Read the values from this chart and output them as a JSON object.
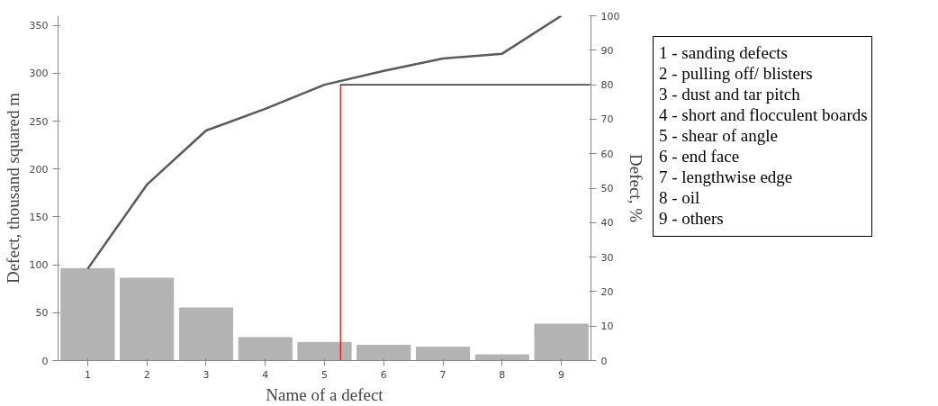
{
  "chart_data": {
    "type": "bar",
    "xlabel": "Name of a defect",
    "ylabel": "Defect, thousand squared m",
    "y2label": "Defect, %",
    "x": [
      1,
      2,
      3,
      4,
      5,
      6,
      7,
      8,
      9
    ],
    "xlim": [
      0.5,
      9.5
    ],
    "xticks": [
      1,
      2,
      3,
      4,
      5,
      6,
      7,
      8,
      9
    ],
    "ylim": [
      0,
      360
    ],
    "yticks": [
      0,
      50,
      100,
      150,
      200,
      250,
      300,
      350
    ],
    "y2lim": [
      0,
      100
    ],
    "y2ticks": [
      0,
      10,
      20,
      30,
      40,
      50,
      60,
      70,
      80,
      90,
      100
    ],
    "series": [
      {
        "color": "#b3b3b3",
        "values": [
          96,
          86,
          55,
          24,
          19,
          16,
          14,
          6,
          38
        ]
      },
      {
        "type": "line",
        "color": "#5a5a5a",
        "axis": "y2",
        "values": [
          26.6,
          51,
          66.7,
          73,
          80,
          84,
          87.6,
          89,
          100
        ]
      }
    ],
    "ref_lines": [
      {
        "axis": "x",
        "value": 5.27,
        "color": "#ff0000"
      },
      {
        "axis": "y2",
        "value": 80,
        "color": "#000000"
      }
    ],
    "annotations": [
      "1 -  sanding defects",
      "2 -  pulling off/ blisters",
      "3 -  dust and tar pitch",
      "4 - short and flocculent boards",
      "5 -  shear of angle",
      "6 -  end face",
      "7 -  lengthwise edge",
      "8 -  oil",
      "9 -  others"
    ],
    "grid": false
  }
}
